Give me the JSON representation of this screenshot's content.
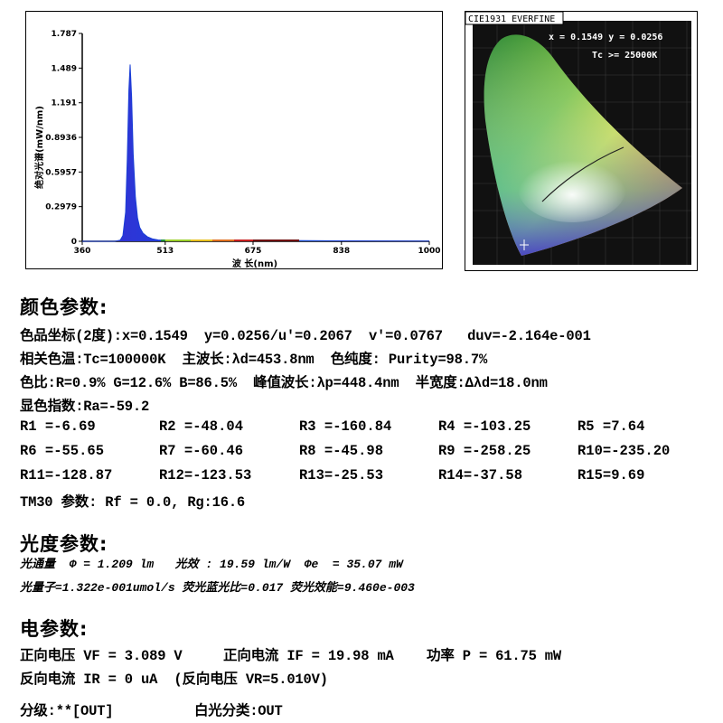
{
  "spectrum": {
    "ylabel": "绝对光谱(mW/nm)",
    "xlabel": "波 长(nm)",
    "ytick_labels": [
      "1.787",
      "1.489",
      "1.191",
      "0.8936",
      "0.5957",
      "0.2979",
      "0"
    ],
    "xtick_labels": [
      "360",
      "513",
      "675",
      "838",
      "1000"
    ]
  },
  "chart_data": {
    "type": "line",
    "title": "",
    "xlabel": "波 长(nm)",
    "ylabel": "绝对光谱(mW/nm)",
    "xlim": [
      360,
      1000
    ],
    "ylim": [
      0,
      1.787
    ],
    "grid": false,
    "series": [
      {
        "x": [
          360,
          420,
          430,
          435,
          440,
          443,
          446,
          448.4,
          451,
          454,
          458,
          462,
          466,
          472,
          480,
          490,
          500,
          513,
          540,
          600,
          675,
          700,
          838,
          1000
        ],
        "y": [
          0,
          0,
          0.01,
          0.05,
          0.25,
          0.7,
          1.3,
          1.52,
          1.25,
          0.75,
          0.38,
          0.2,
          0.12,
          0.07,
          0.04,
          0.02,
          0.012,
          0.008,
          0.006,
          0.008,
          0.012,
          0.008,
          0.004,
          0.002
        ]
      }
    ]
  },
  "cie": {
    "title": "CIE1931 EVERFINE",
    "coords": "x = 0.1549 y = 0.0256",
    "tc": "Tc >= 25000K"
  },
  "color_section": {
    "title": "颜色参数:",
    "lines": [
      "色品坐标(2度):x=0.1549  y=0.0256/u'=0.2067  v'=0.0767   duv=-2.164e-001",
      "相关色温:Tc=100000K  主波长:λd=453.8nm  色纯度: Purity=98.7%",
      "色比:R=0.9% G=12.6% B=86.5%  峰值波长:λp=448.4nm  半宽度:Δλd=18.0nm",
      "显色指数:Ra=-59.2"
    ],
    "r_rows": [
      [
        "R1 =-6.69",
        "R2 =-48.04",
        "R3 =-160.84",
        "R4 =-103.25",
        "R5 =7.64"
      ],
      [
        "R6 =-55.65",
        "R7 =-60.46",
        "R8 =-45.98",
        "R9 =-258.25",
        "R10=-235.20"
      ],
      [
        "R11=-128.87",
        "R12=-123.53",
        "R13=-25.53",
        "R14=-37.58",
        "R15=9.69"
      ]
    ],
    "tm30": "TM30 参数: Rf = 0.0, Rg:16.6"
  },
  "photo_section": {
    "title": "光度参数:",
    "line1": "光通量  Φ = 1.209 lm   光效 : 19.59 lm/W  Φe  = 35.07 mW",
    "line2": "光量子=1.322e-001umol/s 荧光蓝光比=0.017 荧光效能=9.460e-003"
  },
  "elec_section": {
    "title": "电参数:",
    "line1": "正向电压 VF = 3.089 V     正向电流 IF = 19.98 mA    功率 P = 61.75 mW",
    "line2": "反向电流 IR = 0 uA  (反向电压 VR=5.010V)"
  },
  "grade": {
    "label": "分级:**[OUT]",
    "white": "白光分类:OUT"
  },
  "colors": {
    "peak_blue": "#1a3fd6",
    "cie_black": "#000000"
  }
}
